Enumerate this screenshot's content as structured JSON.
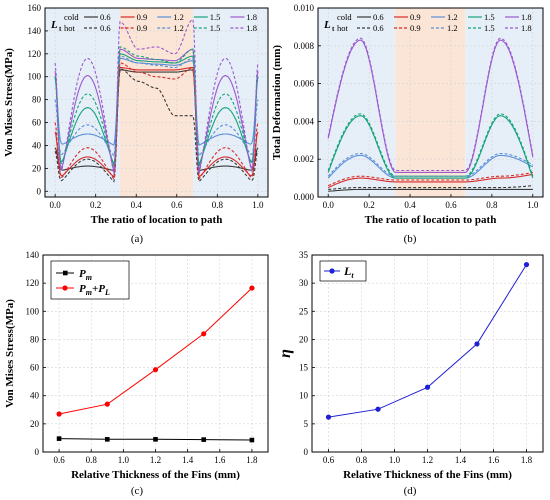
{
  "panel_tags": [
    "(a)",
    "(b)",
    "(c)",
    "(d)"
  ],
  "legend_ab": {
    "symbol": "L",
    "symbol_sub": "t",
    "row_cold": "cold",
    "row_hot": "hot",
    "thickness_labels": [
      "0.6",
      "0.9",
      "1.2",
      "1.5",
      "1.8"
    ]
  },
  "colors": {
    "t0_6": "#3a3a3a",
    "t0_9": "#d62a2a",
    "t1_2": "#5a8fd8",
    "t1_5": "#14a37a",
    "t1_8": "#9b59d0",
    "bg_blue": "#e6eff7",
    "bg_peach": "#fbe5d6",
    "series_c_pm": "#000000",
    "series_c_pmpl": "#ff0000",
    "series_d": "#1f1fd6"
  },
  "chart_data": [
    {
      "id": "a",
      "type": "line",
      "xlabel": "The ratio of location to path",
      "ylabel": "Von Mises Stress(MPa)",
      "xlim": [
        -0.05,
        1.05
      ],
      "ylim": [
        -5,
        160
      ],
      "xticks": [
        "0.0",
        "0.2",
        "0.4",
        "0.6",
        "0.8",
        "1.0"
      ],
      "yticks": [
        "0",
        "20",
        "40",
        "60",
        "80",
        "100",
        "120",
        "140",
        "160"
      ],
      "shaded_regions": [
        {
          "from": -0.05,
          "to": 0.32,
          "color": "bg_blue"
        },
        {
          "from": 0.32,
          "to": 0.68,
          "color": "bg_peach"
        },
        {
          "from": 0.68,
          "to": 1.05,
          "color": "bg_blue"
        }
      ],
      "series": [
        {
          "name": "0.6",
          "state": "cold",
          "color": "t0_6",
          "dash": false,
          "ends": [
            38,
            38
          ],
          "fin_min": 18,
          "fin_peak": 22,
          "center": [
            106,
            104,
            104,
            104,
            106
          ],
          "center_dip": 0
        },
        {
          "name": "0.9",
          "state": "cold",
          "color": "t0_9",
          "dash": false,
          "ends": [
            52,
            52
          ],
          "fin_min": 12,
          "fin_peak": 30,
          "center": [
            108,
            106,
            106,
            106,
            108
          ],
          "center_dip": 0
        },
        {
          "name": "1.2",
          "state": "cold",
          "color": "t1_2",
          "dash": false,
          "ends": [
            100,
            100
          ],
          "fin_min": 40,
          "fin_peak": 50,
          "center": [
            116,
            112,
            111,
            110,
            114
          ],
          "center_dip": 0
        },
        {
          "name": "1.5",
          "state": "cold",
          "color": "t1_5",
          "dash": false,
          "ends": [
            100,
            100
          ],
          "fin_min": 22,
          "fin_peak": 73,
          "center": [
            120,
            114,
            113,
            112,
            118
          ],
          "center_dip": 0
        },
        {
          "name": "1.8",
          "state": "cold",
          "color": "t1_8",
          "dash": false,
          "ends": [
            105,
            105
          ],
          "fin_min": 15,
          "fin_peak": 101,
          "center": [
            124,
            116,
            115,
            114,
            124
          ],
          "center_dip": 0
        },
        {
          "name": "0.6",
          "state": "hot",
          "color": "t0_6",
          "dash": true,
          "ends": [
            35,
            35
          ],
          "fin_min": 8,
          "fin_peak": 28,
          "center": [
            107,
            96,
            90,
            66,
            66
          ],
          "center_dip": 1
        },
        {
          "name": "0.9",
          "state": "hot",
          "color": "t0_9",
          "dash": true,
          "ends": [
            60,
            60
          ],
          "fin_min": 10,
          "fin_peak": 38,
          "center": [
            112,
            104,
            100,
            98,
            108
          ],
          "center_dip": 0
        },
        {
          "name": "1.2",
          "state": "hot",
          "color": "t1_2",
          "dash": true,
          "ends": [
            80,
            80
          ],
          "fin_min": 30,
          "fin_peak": 58,
          "center": [
            118,
            112,
            110,
            108,
            116
          ],
          "center_dip": 0
        },
        {
          "name": "1.5",
          "state": "hot",
          "color": "t1_5",
          "dash": true,
          "ends": [
            100,
            100
          ],
          "fin_min": 20,
          "fin_peak": 85,
          "center": [
            126,
            118,
            115,
            112,
            124
          ],
          "center_dip": 0
        },
        {
          "name": "1.8",
          "state": "hot",
          "color": "t1_8",
          "dash": true,
          "ends": [
            112,
            112
          ],
          "fin_min": 12,
          "fin_peak": 116,
          "center": [
            148,
            124,
            126,
            120,
            150
          ],
          "center_dip": 0
        }
      ]
    },
    {
      "id": "b",
      "type": "line",
      "xlabel": "The ratio of location to path",
      "ylabel": "Total Deformation (mm)",
      "xlim": [
        -0.05,
        1.05
      ],
      "ylim": [
        0,
        0.01
      ],
      "xticks": [
        "0.0",
        "0.2",
        "0.4",
        "0.6",
        "0.8",
        "1.0"
      ],
      "yticks": [
        "0.000",
        "0.002",
        "0.004",
        "0.006",
        "0.008",
        "0.010"
      ],
      "shaded_regions": [
        {
          "from": -0.05,
          "to": 0.33,
          "color": "bg_blue"
        },
        {
          "from": 0.33,
          "to": 0.67,
          "color": "bg_peach"
        },
        {
          "from": 0.67,
          "to": 1.05,
          "color": "bg_blue"
        }
      ],
      "series": [
        {
          "name": "0.6",
          "state": "cold",
          "color": "t0_6",
          "dash": false,
          "start": 0.0003,
          "peak": 0.0004,
          "center": 0.0004,
          "end": 0.0004
        },
        {
          "name": "0.9",
          "state": "cold",
          "color": "t0_9",
          "dash": false,
          "start": 0.0005,
          "peak": 0.001,
          "center": 0.0008,
          "end": 0.0012
        },
        {
          "name": "1.2",
          "state": "cold",
          "color": "t1_2",
          "dash": false,
          "start": 0.001,
          "peak": 0.0022,
          "center": 0.001,
          "end": 0.0016
        },
        {
          "name": "1.5",
          "state": "cold",
          "color": "t1_5",
          "dash": false,
          "start": 0.0013,
          "peak": 0.0043,
          "center": 0.001,
          "end": 0.001
        },
        {
          "name": "1.8",
          "state": "cold",
          "color": "t1_8",
          "dash": false,
          "start": 0.0031,
          "peak": 0.0083,
          "center": 0.0013,
          "end": 0.0021
        },
        {
          "name": "0.6",
          "state": "hot",
          "color": "t0_6",
          "dash": true,
          "start": 0.0004,
          "peak": 0.0005,
          "center": 0.0005,
          "end": 0.0006
        },
        {
          "name": "0.9",
          "state": "hot",
          "color": "t0_9",
          "dash": true,
          "start": 0.0006,
          "peak": 0.0011,
          "center": 0.0009,
          "end": 0.0013
        },
        {
          "name": "1.2",
          "state": "hot",
          "color": "t1_2",
          "dash": true,
          "start": 0.0011,
          "peak": 0.0023,
          "center": 0.0011,
          "end": 0.0017
        },
        {
          "name": "1.5",
          "state": "hot",
          "color": "t1_5",
          "dash": true,
          "start": 0.0014,
          "peak": 0.0044,
          "center": 0.0011,
          "end": 0.0011
        },
        {
          "name": "1.8",
          "state": "hot",
          "color": "t1_8",
          "dash": true,
          "start": 0.0032,
          "peak": 0.0084,
          "center": 0.0014,
          "end": 0.0022
        }
      ]
    },
    {
      "id": "c",
      "type": "line",
      "xlabel": "Relative Thickness of the Fins (mm)",
      "ylabel": "Von Mises Stress(MPa)",
      "xlim": [
        0.5,
        1.9
      ],
      "ylim": [
        0,
        140
      ],
      "xticks": [
        "0.6",
        "0.8",
        "1.0",
        "1.2",
        "1.4",
        "1.6",
        "1.8"
      ],
      "yticks": [
        "0",
        "20",
        "40",
        "60",
        "80",
        "100",
        "120",
        "140"
      ],
      "legend_position": "top-left",
      "x": [
        0.6,
        0.9,
        1.2,
        1.5,
        1.8
      ],
      "series": [
        {
          "name": "P",
          "name_sub": "m",
          "name_extra": "",
          "color": "series_c_pm",
          "marker": "square",
          "values": [
            9.5,
            9.0,
            9.0,
            8.8,
            8.5
          ]
        },
        {
          "name": "P",
          "name_sub": "m",
          "name_extra": "+P",
          "name_extra_sub": "L",
          "color": "series_c_pmpl",
          "marker": "circle",
          "values": [
            27,
            34,
            58.5,
            84,
            116.5
          ]
        }
      ]
    },
    {
      "id": "d",
      "type": "line",
      "xlabel": "Relative Thickness of the Fins (mm)",
      "ylabel": "η",
      "xlim": [
        0.5,
        1.9
      ],
      "ylim": [
        0,
        35
      ],
      "xticks": [
        "0.6",
        "0.8",
        "1.0",
        "1.2",
        "1.4",
        "1.6",
        "1.8"
      ],
      "yticks": [
        "0",
        "5",
        "10",
        "15",
        "20",
        "25",
        "30",
        "35"
      ],
      "legend_position": "top-left",
      "x": [
        0.6,
        0.9,
        1.2,
        1.5,
        1.8
      ],
      "series": [
        {
          "name": "L",
          "name_sub": "t",
          "color": "series_d",
          "marker": "circle",
          "values": [
            6.2,
            7.6,
            11.5,
            19.2,
            33.3
          ]
        }
      ]
    }
  ]
}
